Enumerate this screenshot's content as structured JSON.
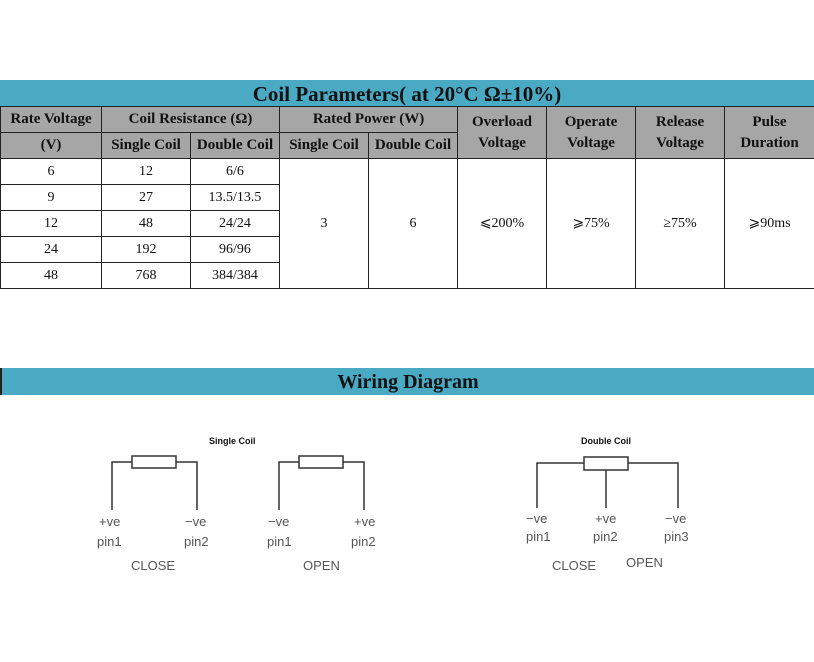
{
  "coil": {
    "title": "Coil Parameters( at 20°C  Ω±10%)",
    "headers": {
      "rate_voltage": "Rate Voltage",
      "unit_v": "(V)",
      "coil_resistance": "Coil Resistance (Ω)",
      "rated_power": "Rated Power (W)",
      "single": "Single Coil",
      "double": "Double Coil",
      "overload": "Overload Voltage",
      "operate": "Operate Voltage",
      "release": "Release Voltage",
      "pulse": "Pulse Duration"
    },
    "rows": [
      {
        "v": "6",
        "single": "12",
        "double": "6/6"
      },
      {
        "v": "9",
        "single": "27",
        "double": "13.5/13.5"
      },
      {
        "v": "12",
        "single": "48",
        "double": "24/24"
      },
      {
        "v": "24",
        "single": "192",
        "double": "96/96"
      },
      {
        "v": "48",
        "single": "768",
        "double": "384/384"
      }
    ],
    "power_single": "3",
    "power_double": "6",
    "overload": "⩽200%",
    "operate": "⩾75%",
    "release": "≥75%",
    "pulse": "⩾90ms"
  },
  "wiring": {
    "title": "Wiring Diagram",
    "single": {
      "label": "Single Coil",
      "close": {
        "p1_pol": "+ve",
        "p1": "pin1",
        "p2_pol": "−ve",
        "p2": "pin2",
        "label": "CLOSE"
      },
      "open": {
        "p1_pol": "−ve",
        "p1": "pin1",
        "p2_pol": "+ve",
        "p2": "pin2",
        "label": "OPEN"
      }
    },
    "double": {
      "label": "Double Coil",
      "p1_pol": "−ve",
      "p1": "pin1",
      "p2_pol": "+ve",
      "p2": "pin2",
      "p3_pol": "−ve",
      "p3": "pin3",
      "close": "CLOSE",
      "open": "OPEN"
    }
  }
}
